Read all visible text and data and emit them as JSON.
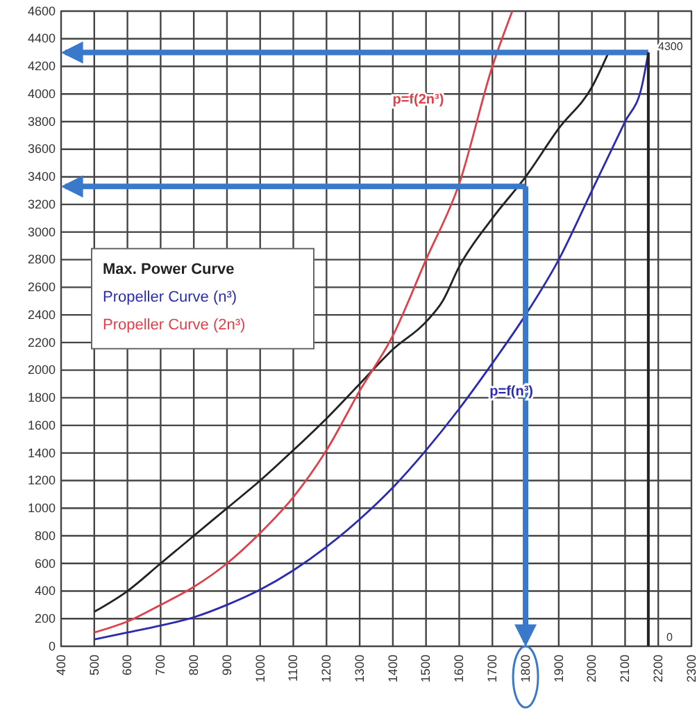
{
  "chart_data": {
    "type": "line",
    "xlim": [
      400,
      2300
    ],
    "xticks": [
      400,
      500,
      600,
      700,
      800,
      900,
      1000,
      1100,
      1200,
      1300,
      1400,
      1500,
      1600,
      1700,
      1800,
      1900,
      2000,
      2100,
      2200,
      2300
    ],
    "ylim": [
      0,
      4600
    ],
    "yticks": [
      0,
      200,
      400,
      600,
      800,
      1000,
      1200,
      1400,
      1600,
      1800,
      2000,
      2200,
      2400,
      2600,
      2800,
      3000,
      3200,
      3400,
      3600,
      3800,
      4000,
      4200,
      4400,
      4600
    ],
    "grid": true,
    "legend": "left",
    "marker": "none",
    "line_style": "solid",
    "series": [
      {
        "name": "Max. Power Curve",
        "color": "#222222",
        "x": [
          500,
          600,
          700,
          800,
          900,
          1000,
          1100,
          1200,
          1300,
          1400,
          1500,
          1550,
          1600,
          1700,
          1800,
          1900,
          2000,
          2050
        ],
        "values": [
          250,
          400,
          600,
          800,
          1000,
          1200,
          1420,
          1650,
          1900,
          2150,
          2350,
          2500,
          2750,
          3100,
          3400,
          3750,
          4050,
          4300
        ]
      },
      {
        "name": "Propeller Curve (n³)",
        "color": "#2b2bb0",
        "x": [
          500,
          600,
          700,
          800,
          900,
          1000,
          1100,
          1200,
          1300,
          1400,
          1500,
          1600,
          1700,
          1800,
          1900,
          2000,
          2100,
          2150,
          2170
        ],
        "values": [
          50,
          100,
          150,
          210,
          300,
          410,
          550,
          720,
          920,
          1150,
          1420,
          1720,
          2050,
          2400,
          2800,
          3300,
          3800,
          4050,
          4300
        ]
      },
      {
        "name": "Propeller Curve (2n³)",
        "color": "#e0404a",
        "x": [
          500,
          600,
          700,
          800,
          900,
          1000,
          1100,
          1200,
          1300,
          1400,
          1500,
          1600,
          1700,
          1760
        ],
        "values": [
          100,
          180,
          300,
          430,
          600,
          820,
          1080,
          1420,
          1850,
          2250,
          2800,
          3350,
          4200,
          4600
        ]
      }
    ],
    "ref_lines": [
      {
        "axis": "y",
        "value": 4300,
        "color": "#3a78c9"
      },
      {
        "axis": "y",
        "value": 3330,
        "color": "#3a78c9"
      },
      {
        "axis": "x",
        "value": 2170,
        "color": "#222222"
      },
      {
        "axis": "x",
        "value": 1800,
        "color": "#3a78c9"
      }
    ],
    "annotations": [
      "p=f(2n³)",
      "p=f(n³)",
      "4300",
      "0"
    ]
  }
}
